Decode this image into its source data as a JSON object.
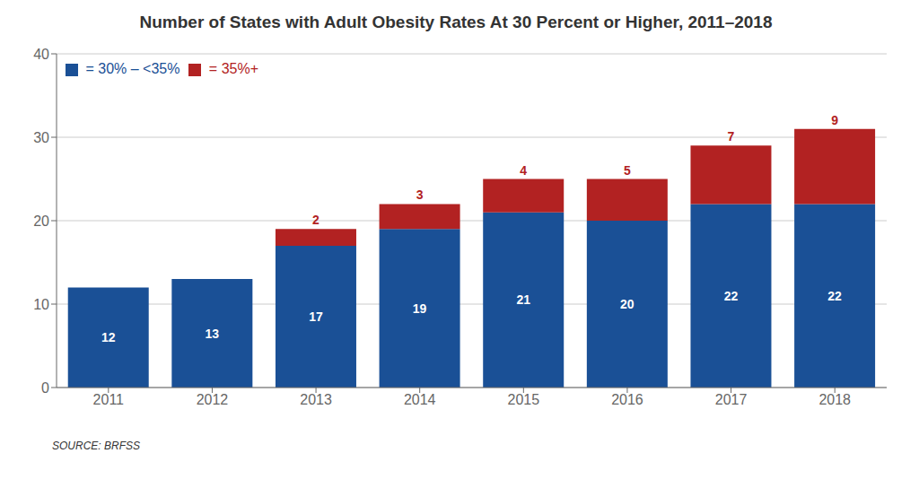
{
  "chart_data": {
    "type": "bar",
    "title": "Number of States with Adult Obesity Rates At 30 Percent or Higher, 2011–2018",
    "categories": [
      "2011",
      "2012",
      "2013",
      "2014",
      "2015",
      "2016",
      "2017",
      "2018"
    ],
    "series": [
      {
        "name": " = 30% – <35%",
        "color": "#1a5096",
        "values": [
          12,
          13,
          17,
          19,
          21,
          20,
          22,
          22
        ]
      },
      {
        "name": " = 35%+",
        "color": "#b22222",
        "values": [
          0,
          0,
          2,
          3,
          4,
          5,
          7,
          9
        ]
      }
    ],
    "stacked": true,
    "ylim": [
      0,
      40
    ],
    "yticks": [
      0,
      10,
      20,
      30,
      40
    ],
    "grid": true,
    "legend": "upper left",
    "data_labels": true,
    "annotations": [
      "SOURCE: BRFSS"
    ]
  }
}
